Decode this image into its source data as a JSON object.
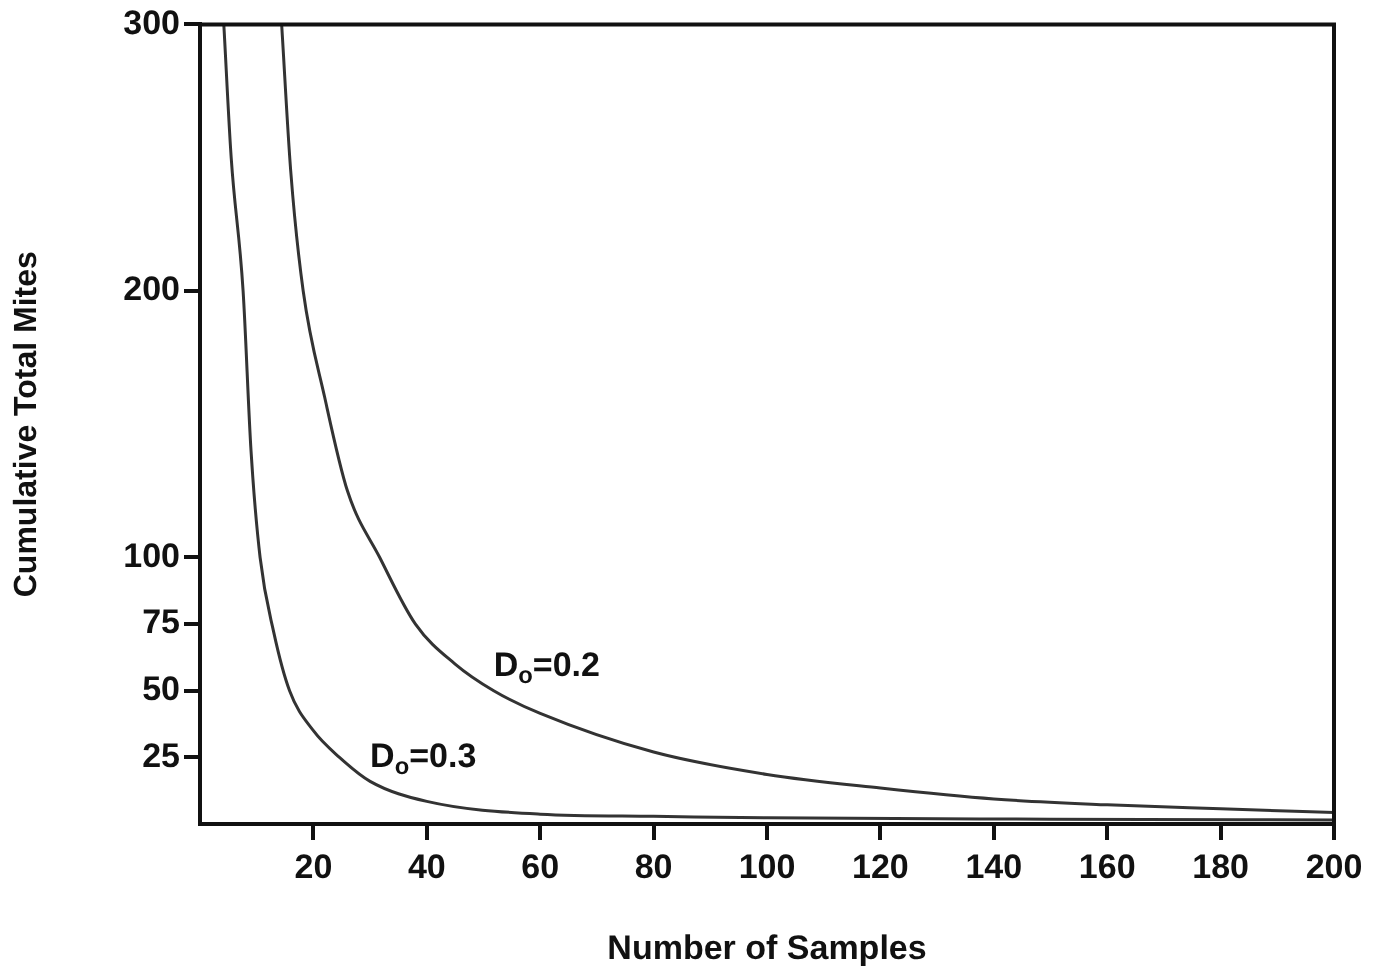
{
  "chart_data": {
    "type": "line",
    "xlabel": "Number of Samples",
    "ylabel": "Cumulative Total Mites",
    "xlim": [
      0,
      200
    ],
    "xticks": [
      20,
      40,
      60,
      80,
      100,
      120,
      140,
      160,
      180,
      200
    ],
    "ylim": [
      0,
      300
    ],
    "yticks": [
      25,
      50,
      75,
      100,
      200,
      300
    ],
    "grid": false,
    "legend": false,
    "marker": "none",
    "line_style": "solid",
    "series": [
      {
        "color": "#333333",
        "x": [
          4.2,
          5.5,
          7.6,
          9,
          10.6,
          13,
          15.8,
          20,
          24.6,
          30,
          40,
          60,
          80,
          100,
          150,
          200
        ],
        "values": [
          300,
          250,
          200,
          140,
          100,
          72,
          50,
          35,
          25,
          16,
          8.5,
          3.7,
          2.9,
          2.3,
          1.8,
          1.5
        ]
      },
      {
        "color": "#333333",
        "x": [
          14.4,
          16,
          18.2,
          22,
          26,
          31.7,
          38,
          45,
          51.8,
          60,
          80,
          100,
          120,
          140,
          160,
          180,
          200
        ],
        "values": [
          300,
          245,
          200,
          160,
          125,
          100,
          75,
          60,
          50,
          41.5,
          27,
          18.6,
          13.5,
          9.4,
          7.2,
          5.7,
          4.3
        ]
      }
    ],
    "annotations": [
      {
        "text": "D$_{o}$=0.2",
        "x": 51.8,
        "y": 50
      },
      {
        "text": "D$_{o}$=0.3",
        "x": 30,
        "y": 16
      }
    ]
  }
}
